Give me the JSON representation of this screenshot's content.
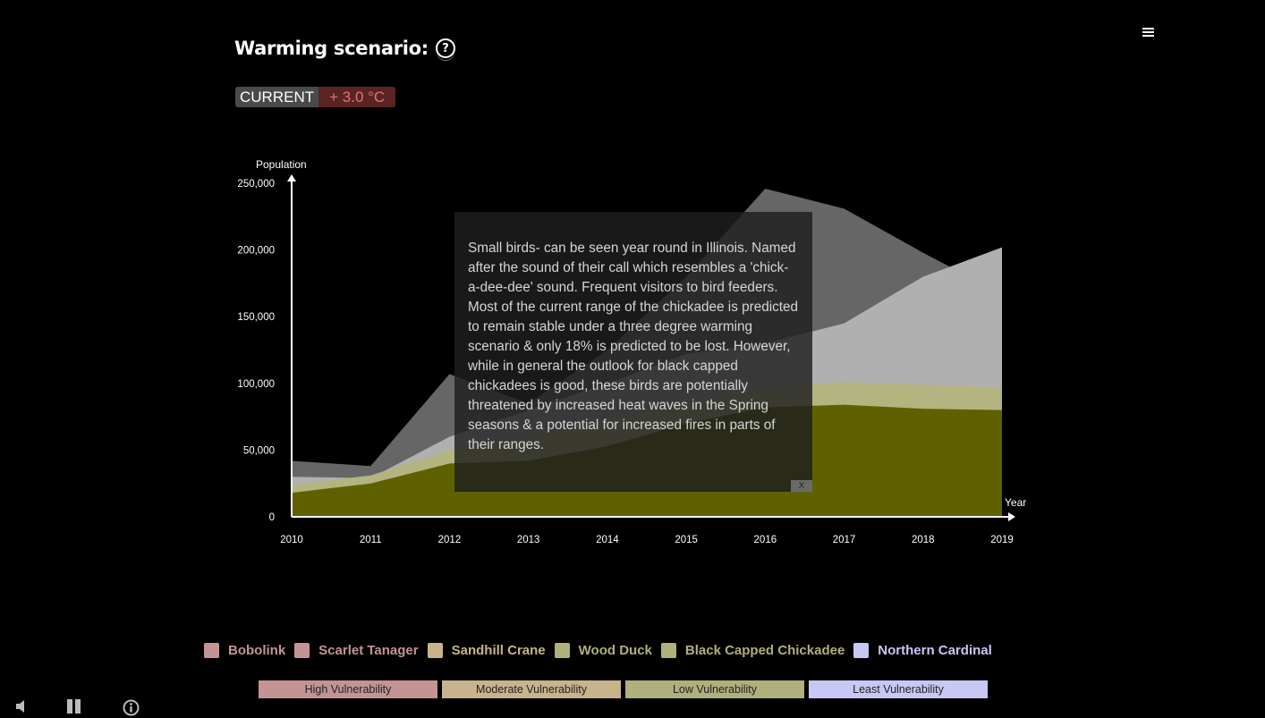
{
  "header": {
    "title": "Warming scenario:",
    "help_symbol": "?",
    "current_label": "CURRENT",
    "warming_label": "+ 3.0 °C"
  },
  "chart_data": {
    "type": "area",
    "ylabel": "Population",
    "xlabel": "Year",
    "ylim": [
      0,
      250000
    ],
    "yticks": [
      0,
      50000,
      100000,
      150000,
      200000,
      250000
    ],
    "ytick_labels": [
      "0",
      "50,000",
      "100,000",
      "150,000",
      "200,000",
      "250,000"
    ],
    "x": [
      2010,
      2011,
      2012,
      2013,
      2014,
      2015,
      2016,
      2017,
      2018,
      2019
    ],
    "layers": [
      {
        "color": "#666666",
        "values": [
          42000,
          38000,
          107000,
          85000,
          125000,
          180000,
          246000,
          231000,
          198000,
          167000
        ]
      },
      {
        "color": "#b0b0b0",
        "values": [
          30000,
          29000,
          60000,
          80000,
          100000,
          122000,
          130000,
          145000,
          180000,
          202000
        ]
      },
      {
        "color": "#b4b480",
        "values": [
          24000,
          31000,
          50000,
          60000,
          73000,
          85000,
          97000,
          101000,
          99000,
          97000
        ]
      },
      {
        "color": "#5f6100",
        "values": [
          18000,
          25000,
          40000,
          42000,
          53000,
          70000,
          82000,
          84000,
          81000,
          80000
        ]
      }
    ]
  },
  "tooltip": {
    "text": "Small birds- can be seen year round in Illinois. Named after the sound of their call which resembles a 'chick-a-dee-dee' sound. Frequent visitors to bird feeders. Most of the current range of the chickadee is predicted to remain stable under a three degree warming scenario & only 18% is predicted to be lost. However, while in general the outlook for black capped chickadees is good, these birds are potentially threatened by increased heat waves in the Spring seasons & a potential for increased fires in parts of their ranges.",
    "close_label": "X"
  },
  "legend": [
    {
      "label": "Bobolink",
      "color": "#c49494"
    },
    {
      "label": "Scarlet Tanager",
      "color": "#c49494"
    },
    {
      "label": "Sandhill Crane",
      "color": "#c8b48c"
    },
    {
      "label": "Wood Duck",
      "color": "#b0b07c"
    },
    {
      "label": "Black Capped Chickadee",
      "color": "#b0b07c"
    },
    {
      "label": "Northern Cardinal",
      "color": "#c8c8f4"
    }
  ],
  "vulnerability": [
    {
      "label": "High Vulnerability",
      "color": "#c49494"
    },
    {
      "label": "Moderate Vulnerability",
      "color": "#c8b48c"
    },
    {
      "label": "Low Vulnerability",
      "color": "#b0b07c"
    },
    {
      "label": "Least Vulnerability",
      "color": "#c8c8f4"
    }
  ],
  "controls": {
    "sound_icon": "speaker-icon",
    "pause_icon": "pause-icon",
    "info_icon": "info-icon"
  }
}
